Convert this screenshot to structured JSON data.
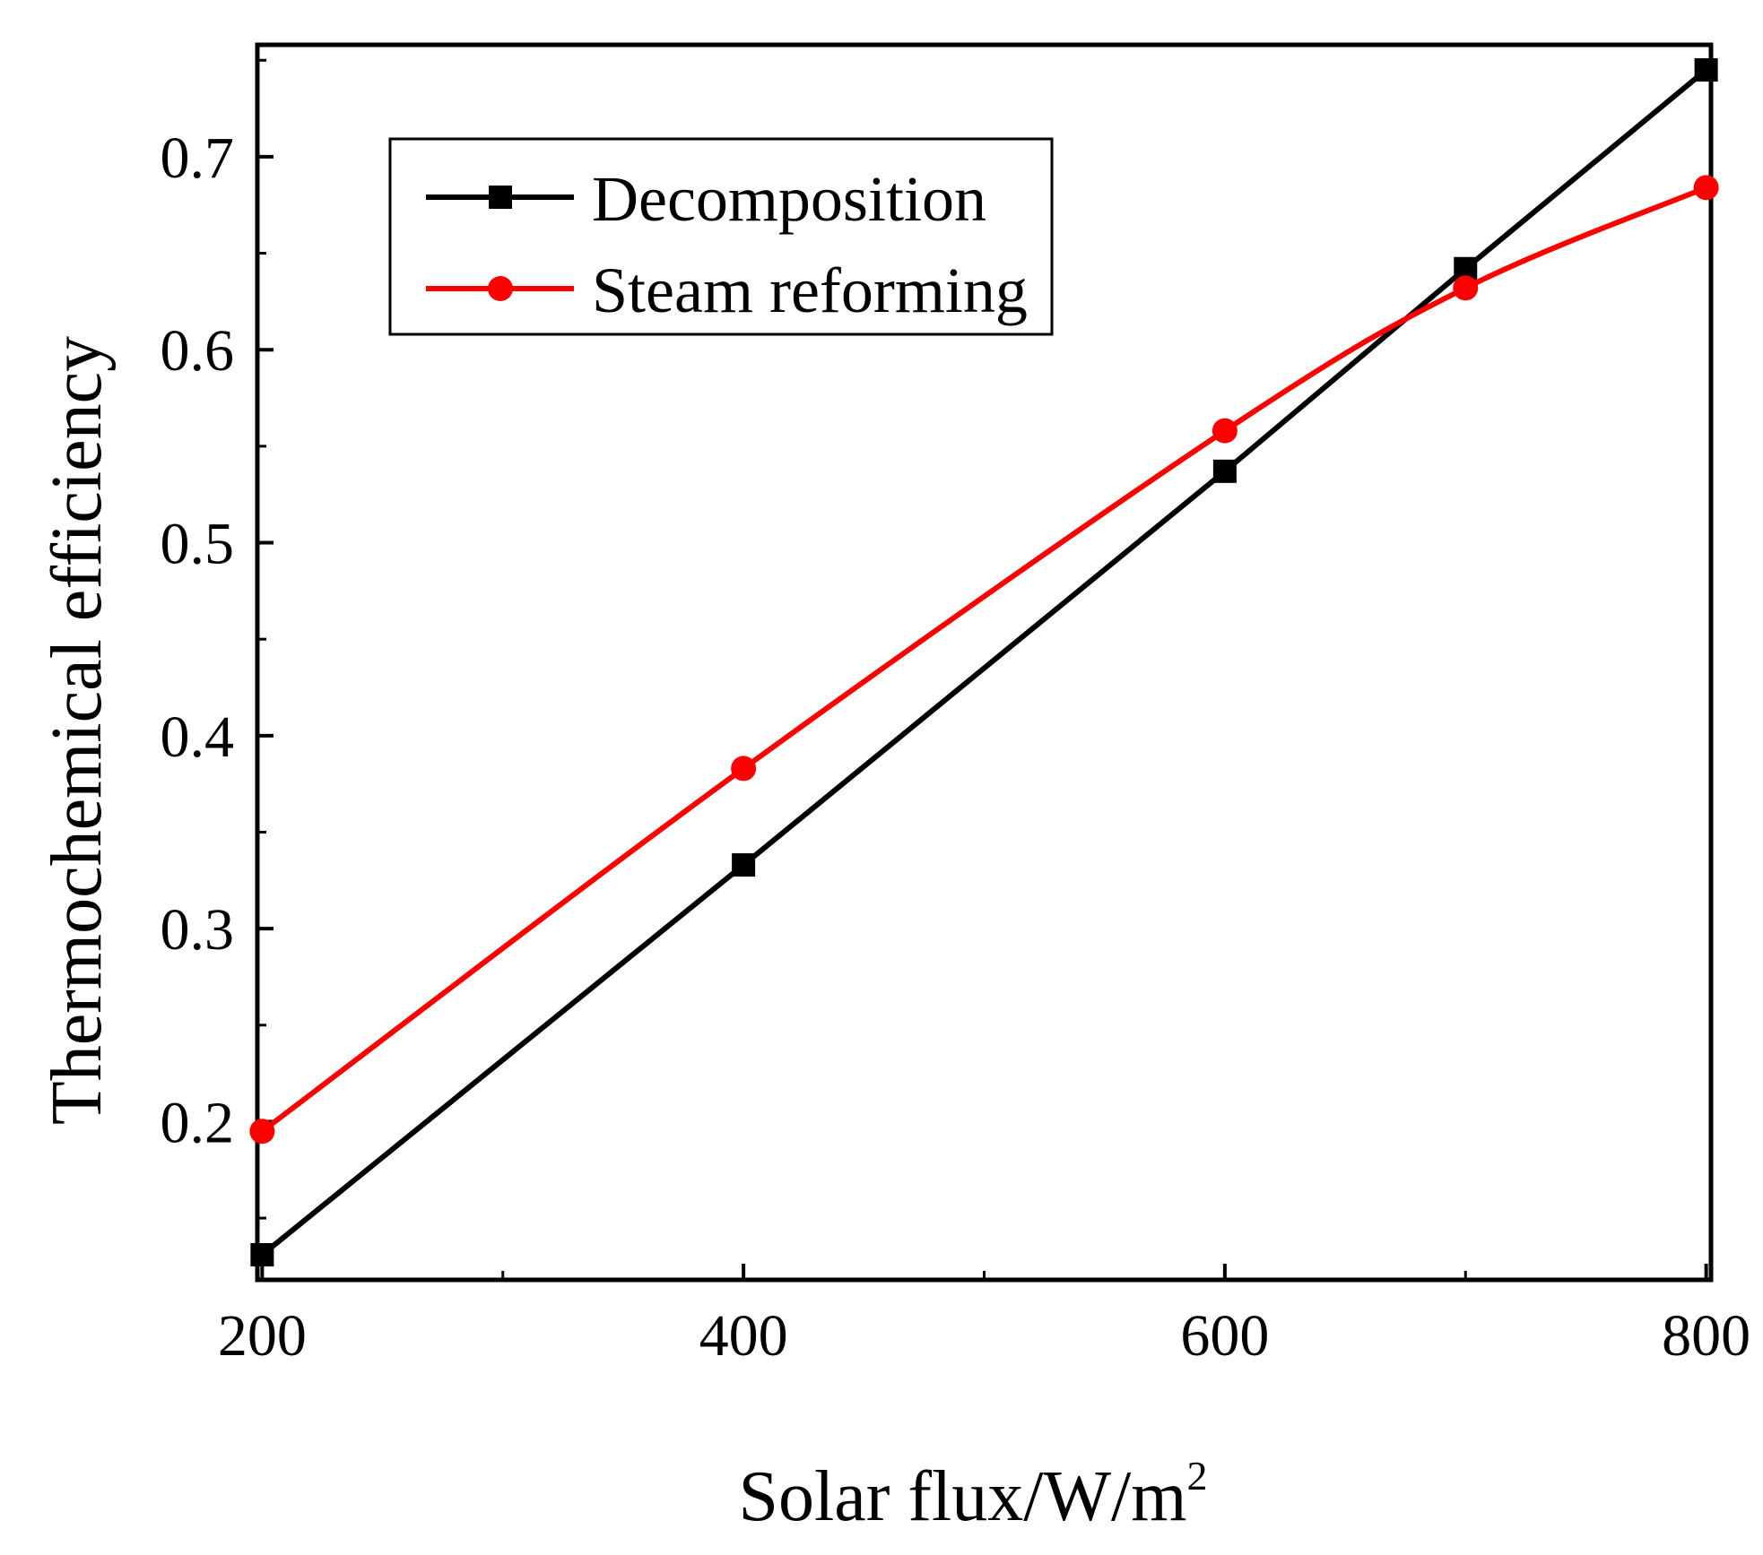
{
  "chart_data": {
    "type": "line",
    "title": "",
    "xlabel": "Solar flux/W/m",
    "xlabel_superscript": "2",
    "ylabel": "Thermochemical efficiency",
    "xlim": [
      198,
      802
    ],
    "ylim": [
      0.118,
      0.758
    ],
    "x_ticks": [
      200,
      400,
      600,
      800
    ],
    "x_tick_labels": [
      "200",
      "400",
      "600",
      "800"
    ],
    "x_minor_ticks": [
      300,
      500,
      700
    ],
    "y_ticks": [
      0.2,
      0.3,
      0.4,
      0.5,
      0.6,
      0.7
    ],
    "y_tick_labels": [
      "0.2",
      "0.3",
      "0.4",
      "0.5",
      "0.6",
      "0.7"
    ],
    "y_minor_ticks": [
      0.15,
      0.25,
      0.35,
      0.45,
      0.55,
      0.65,
      0.75
    ],
    "grid": false,
    "legend_position": "top-left",
    "series": [
      {
        "name": "Decomposition",
        "color": "#000000",
        "marker": "square",
        "smooth": false,
        "x": [
          200,
          400,
          600,
          700,
          800
        ],
        "values": [
          0.131,
          0.333,
          0.537,
          0.642,
          0.745
        ]
      },
      {
        "name": "Steam reforming",
        "color": "#ff0000",
        "marker": "circle",
        "smooth": true,
        "x": [
          200,
          400,
          600,
          700,
          800
        ],
        "values": [
          0.195,
          0.383,
          0.558,
          0.632,
          0.684
        ]
      }
    ]
  }
}
